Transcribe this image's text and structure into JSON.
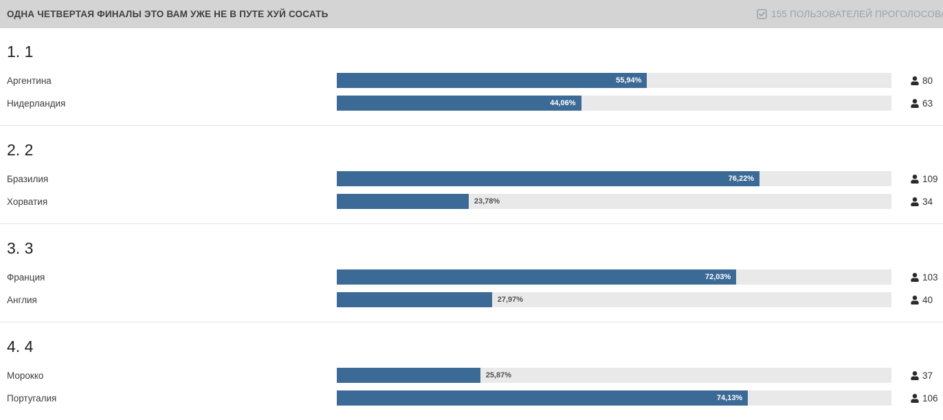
{
  "header": {
    "title": "ОДНА ЧЕТВЕРТАЯ ФИНАЛЫ ЭТО ВАМ УЖЕ НЕ В ПУТЕ ХУЙ СОСАТЬ",
    "voters": {
      "icon": "check-square-icon",
      "label": "155 ПОЛЬЗОВАТЕЛЕЙ ПРОГОЛОСОВА"
    }
  },
  "poll": {
    "sections": [
      {
        "title": "1. 1",
        "options": [
          {
            "label": "Аргентина",
            "percent": 55.94,
            "percent_label": "55,94%",
            "votes": 80
          },
          {
            "label": "Нидерландия",
            "percent": 44.06,
            "percent_label": "44,06%",
            "votes": 63
          }
        ]
      },
      {
        "title": "2. 2",
        "options": [
          {
            "label": "Бразилия",
            "percent": 76.22,
            "percent_label": "76,22%",
            "votes": 109
          },
          {
            "label": "Хорватия",
            "percent": 23.78,
            "percent_label": "23,78%",
            "votes": 34
          }
        ]
      },
      {
        "title": "3. 3",
        "options": [
          {
            "label": "Франция",
            "percent": 72.03,
            "percent_label": "72,03%",
            "votes": 103
          },
          {
            "label": "Англия",
            "percent": 27.97,
            "percent_label": "27,97%",
            "votes": 40
          }
        ]
      },
      {
        "title": "4. 4",
        "options": [
          {
            "label": "Морокко",
            "percent": 25.87,
            "percent_label": "25,87%",
            "votes": 37
          },
          {
            "label": "Португалия",
            "percent": 74.13,
            "percent_label": "74,13%",
            "votes": 106
          }
        ]
      }
    ]
  },
  "colors": {
    "header_bg": "#d4d4d4",
    "header_text": "#3f3f3f",
    "voters_text": "#98a3ad",
    "bar_fill": "#3c6a96",
    "bar_track": "#e9e9e9",
    "percent_inside": "#ffffff",
    "percent_outside": "#4f4f4f",
    "divider": "#e5e5e5",
    "title_text": "#1e1e1e",
    "label_text": "#3c3c3c",
    "count_text": "#333333",
    "page_bg": "#ffffff"
  },
  "settings": {
    "inside_label_threshold_percent": 40
  }
}
